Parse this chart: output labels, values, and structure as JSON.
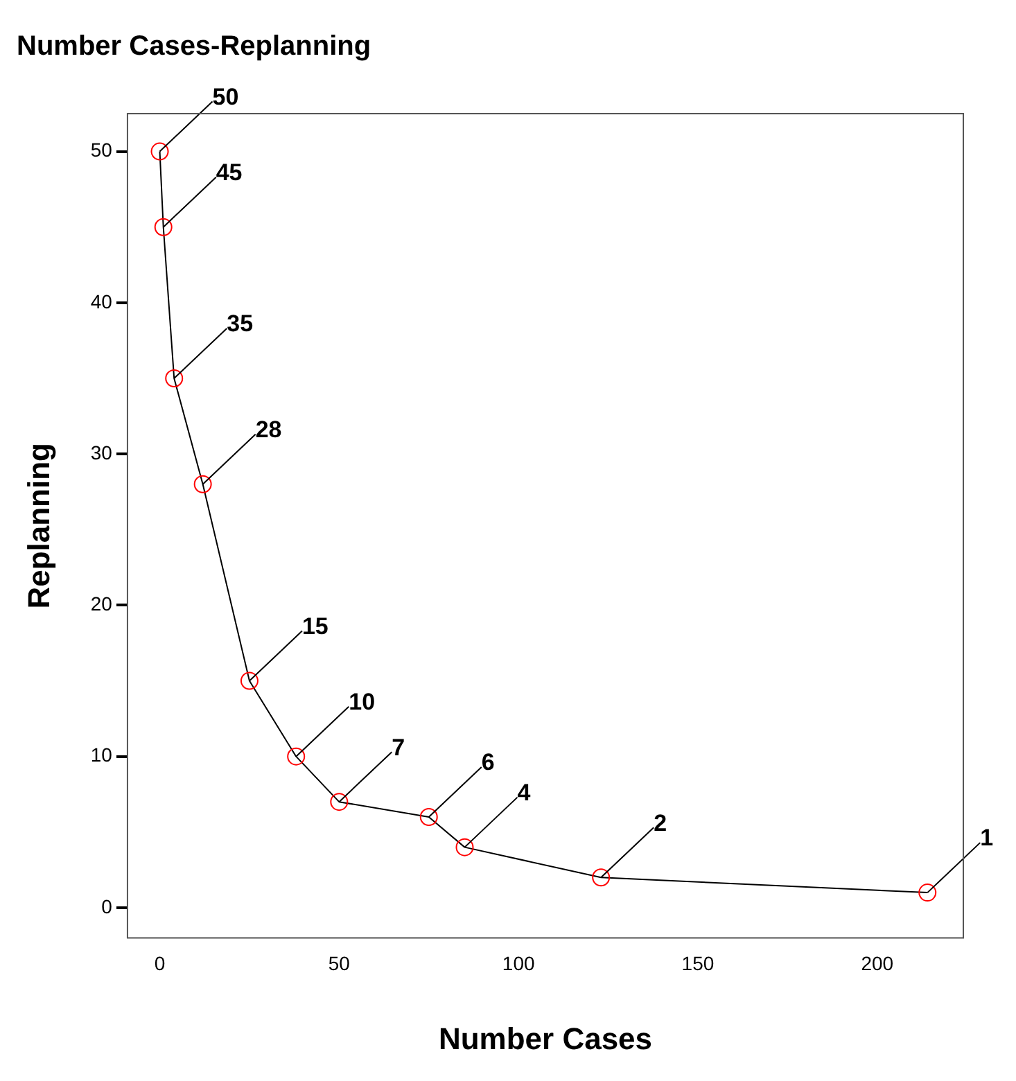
{
  "chart_data": {
    "type": "line",
    "title": "Number Cases-Replanning",
    "xlabel": "Number Cases",
    "ylabel": "Replanning",
    "x": [
      0,
      1,
      4,
      12,
      25,
      38,
      50,
      75,
      85,
      123,
      214
    ],
    "series": [
      {
        "color": "#000000",
        "values": [
          50,
          45,
          35,
          28,
          15,
          10,
          7,
          6,
          4,
          2,
          1
        ]
      }
    ],
    "xlim": [
      -9,
      224
    ],
    "xticks": [
      0,
      50,
      100,
      150,
      200
    ],
    "ylim": [
      -2,
      52.5
    ],
    "yticks": [
      0,
      10,
      20,
      30,
      40,
      50
    ],
    "grid": false,
    "legend": false,
    "marker": "circle",
    "line_style": "solid",
    "data_labels": true
  }
}
